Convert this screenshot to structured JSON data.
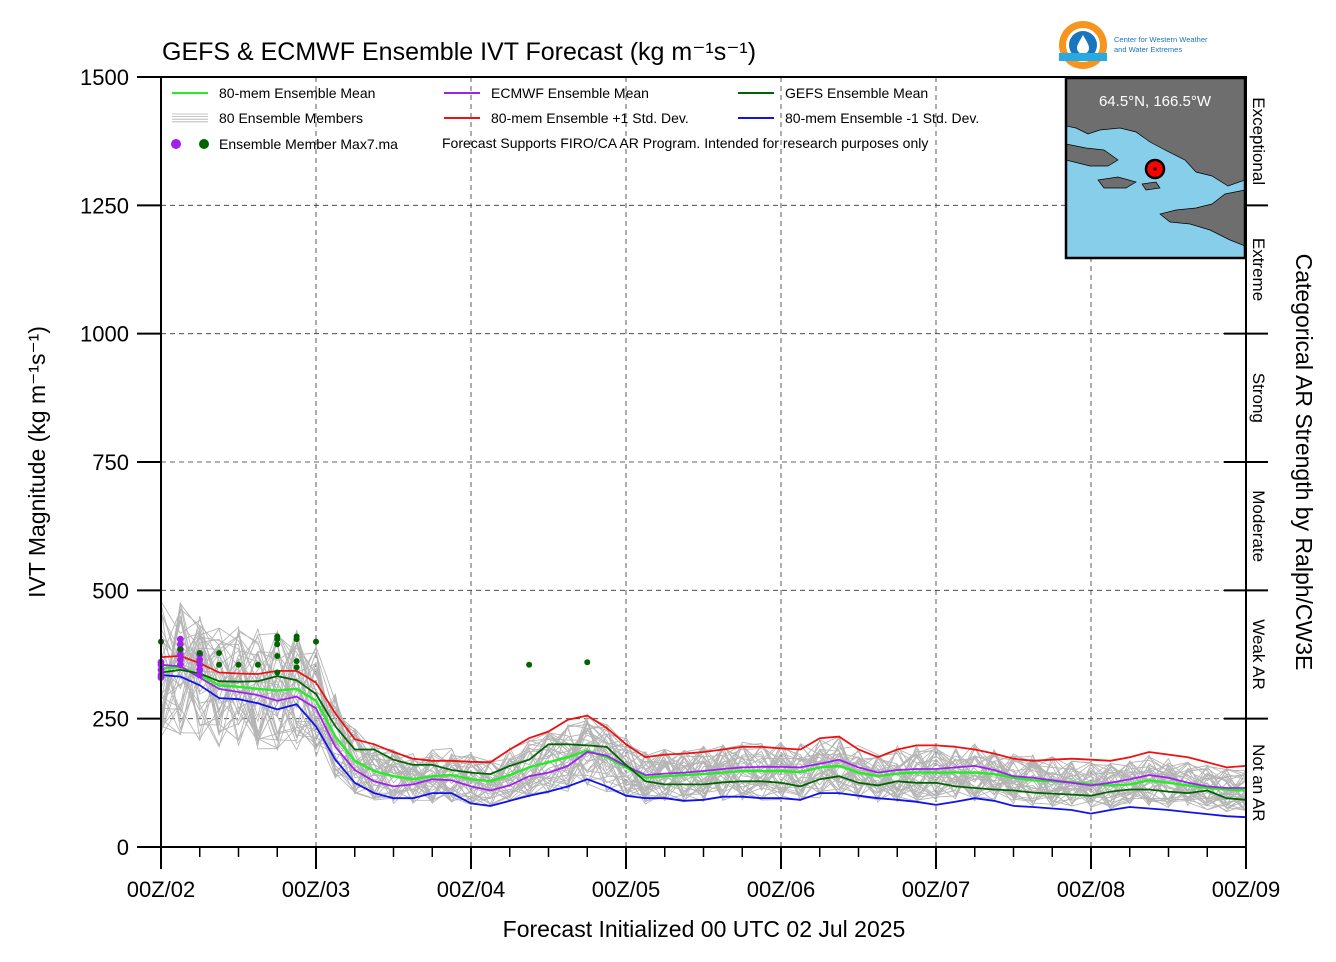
{
  "logo": {
    "org_line1": "Center for Western Weather",
    "org_line2": "and Water Extremes",
    "colors": [
      "#f7941d",
      "#1b75bc",
      "#27aae1"
    ]
  },
  "chart_data": {
    "type": "line",
    "title": "GEFS & ECMWF Ensemble IVT Forecast (kg m⁻¹s⁻¹)",
    "xlabel": "Forecast Initialized 00 UTC 02 Jul 2025",
    "ylabel": "IVT Magnitude (kg m⁻¹s⁻¹)",
    "right_axis_label": "Categorical AR Strength by Ralph/CW3E",
    "ylim": [
      0,
      1500
    ],
    "xlim": [
      0,
      168
    ],
    "x_units": "forecast hour since 00 UTC 02 Jul 2025",
    "y_ticks": [
      0,
      250,
      500,
      750,
      1000,
      1250,
      1500
    ],
    "x_ticks": [
      {
        "hour": 0,
        "label": "00Z/02"
      },
      {
        "hour": 24,
        "label": "00Z/03"
      },
      {
        "hour": 48,
        "label": "00Z/04"
      },
      {
        "hour": 72,
        "label": "00Z/05"
      },
      {
        "hour": 96,
        "label": "00Z/06"
      },
      {
        "hour": 120,
        "label": "00Z/07"
      },
      {
        "hour": 144,
        "label": "00Z/08"
      },
      {
        "hour": 168,
        "label": "00Z/09"
      }
    ],
    "grid": true,
    "categories": [
      {
        "label": "Not an AR",
        "min": 0,
        "max": 250
      },
      {
        "label": "Weak AR",
        "min": 250,
        "max": 500
      },
      {
        "label": "Moderate",
        "min": 500,
        "max": 750
      },
      {
        "label": "Strong",
        "min": 750,
        "max": 1000
      },
      {
        "label": "Extreme",
        "min": 1000,
        "max": 1250
      },
      {
        "label": "Exceptional",
        "min": 1250,
        "max": 1500
      }
    ],
    "legend": [
      {
        "label": "80-mem Ensemble Mean",
        "color": "#22ee22",
        "kind": "line"
      },
      {
        "label": "ECMWF Ensemble Mean",
        "color": "#a020f0",
        "kind": "line"
      },
      {
        "label": "GEFS Ensemble Mean",
        "color": "#006400",
        "kind": "line"
      },
      {
        "label": "80 Ensemble Members",
        "color": "#b0b0b0",
        "kind": "members"
      },
      {
        "label": "80-mem Ensemble +1 Std. Dev.",
        "color": "#ee1111",
        "kind": "line"
      },
      {
        "label": "80-mem Ensemble -1 Std. Dev.",
        "color": "#1111ee",
        "kind": "line"
      },
      {
        "label": "Ensemble Member Max7.ma",
        "color": "#a020f0",
        "color2": "#006400",
        "kind": "dots"
      }
    ],
    "note": "Forecast Supports FIRO/CA AR Program. Intended for research purposes only",
    "series": [
      {
        "name": "80-mem Ensemble +1 Std. Dev.",
        "color": "#ee1111",
        "x": [
          0,
          3,
          6,
          9,
          12,
          15,
          18,
          21,
          24,
          27,
          30,
          33,
          36,
          39,
          42,
          45,
          48,
          51,
          54,
          57,
          60,
          63,
          66,
          69,
          72,
          75,
          78,
          81,
          84,
          87,
          90,
          93,
          96,
          99,
          102,
          105,
          108,
          111,
          114,
          117,
          120,
          123,
          126,
          129,
          132,
          135,
          138,
          141,
          144,
          147,
          150,
          153,
          156,
          159,
          162,
          165,
          168
        ],
        "y": [
          370,
          372,
          358,
          340,
          338,
          337,
          343,
          343,
          320,
          260,
          210,
          200,
          185,
          172,
          168,
          168,
          166,
          165,
          190,
          212,
          225,
          248,
          256,
          232,
          200,
          175,
          180,
          182,
          185,
          190,
          195,
          195,
          192,
          190,
          212,
          215,
          190,
          175,
          190,
          198,
          198,
          195,
          190,
          182,
          172,
          168,
          170,
          172,
          170,
          168,
          175,
          185,
          180,
          175,
          165,
          155,
          158
        ]
      },
      {
        "name": "80-mem Ensemble Mean",
        "color": "#22ee22",
        "x": [
          0,
          3,
          6,
          9,
          12,
          15,
          18,
          21,
          24,
          27,
          30,
          33,
          36,
          39,
          42,
          45,
          48,
          51,
          54,
          57,
          60,
          63,
          66,
          69,
          72,
          75,
          78,
          81,
          84,
          87,
          90,
          93,
          96,
          99,
          102,
          105,
          108,
          111,
          114,
          117,
          120,
          123,
          126,
          129,
          132,
          135,
          138,
          141,
          144,
          147,
          150,
          153,
          156,
          159,
          162,
          165,
          168
        ],
        "y": [
          348,
          350,
          335,
          315,
          312,
          308,
          305,
          308,
          285,
          215,
          168,
          148,
          138,
          132,
          138,
          140,
          132,
          128,
          140,
          155,
          165,
          175,
          188,
          175,
          155,
          135,
          138,
          140,
          142,
          145,
          148,
          148,
          148,
          146,
          155,
          158,
          145,
          138,
          143,
          145,
          145,
          145,
          145,
          142,
          135,
          130,
          128,
          126,
          122,
          120,
          122,
          130,
          125,
          120,
          115,
          112,
          110
        ]
      },
      {
        "name": "ECMWF Ensemble Mean",
        "color": "#a020f0",
        "x": [
          0,
          3,
          6,
          9,
          12,
          15,
          18,
          21,
          24,
          27,
          30,
          33,
          36,
          39,
          42,
          45,
          48,
          51,
          54,
          57,
          60,
          63,
          66,
          69,
          72,
          75,
          78,
          81,
          84,
          87,
          90,
          93,
          96,
          99,
          102,
          105,
          108,
          111,
          114,
          117,
          120,
          123,
          126,
          129,
          132,
          135,
          138,
          141,
          144,
          147,
          150,
          153,
          156,
          159,
          162,
          165,
          168
        ],
        "y": [
          355,
          352,
          330,
          308,
          302,
          296,
          285,
          293,
          270,
          195,
          150,
          128,
          118,
          122,
          132,
          130,
          118,
          110,
          120,
          138,
          145,
          158,
          185,
          178,
          158,
          140,
          143,
          145,
          148,
          152,
          155,
          156,
          156,
          155,
          162,
          170,
          155,
          145,
          150,
          152,
          152,
          155,
          158,
          150,
          138,
          135,
          130,
          125,
          120,
          125,
          132,
          140,
          135,
          125,
          118,
          115,
          115
        ]
      },
      {
        "name": "GEFS Ensemble Mean",
        "color": "#006400",
        "x": [
          0,
          3,
          6,
          9,
          12,
          15,
          18,
          21,
          24,
          27,
          30,
          33,
          36,
          39,
          42,
          45,
          48,
          51,
          54,
          57,
          60,
          63,
          66,
          69,
          72,
          75,
          78,
          81,
          84,
          87,
          90,
          93,
          96,
          99,
          102,
          105,
          108,
          111,
          114,
          117,
          120,
          123,
          126,
          129,
          132,
          135,
          138,
          141,
          144,
          147,
          150,
          153,
          156,
          159,
          162,
          165,
          168
        ],
        "y": [
          340,
          345,
          338,
          323,
          322,
          323,
          333,
          325,
          298,
          235,
          190,
          190,
          170,
          160,
          160,
          150,
          145,
          142,
          158,
          170,
          200,
          200,
          198,
          195,
          160,
          128,
          122,
          122,
          122,
          126,
          128,
          128,
          125,
          118,
          132,
          138,
          125,
          120,
          128,
          125,
          125,
          118,
          115,
          112,
          110,
          106,
          104,
          102,
          100,
          108,
          112,
          112,
          108,
          105,
          110,
          95,
          92
        ]
      },
      {
        "name": "80-mem Ensemble -1 Std. Dev.",
        "color": "#1111ee",
        "x": [
          0,
          3,
          6,
          9,
          12,
          15,
          18,
          21,
          24,
          27,
          30,
          33,
          36,
          39,
          42,
          45,
          48,
          51,
          54,
          57,
          60,
          63,
          66,
          69,
          72,
          75,
          78,
          81,
          84,
          87,
          90,
          93,
          96,
          99,
          102,
          105,
          108,
          111,
          114,
          117,
          120,
          123,
          126,
          129,
          132,
          135,
          138,
          141,
          144,
          147,
          150,
          153,
          156,
          159,
          162,
          165,
          168
        ],
        "y": [
          335,
          332,
          315,
          290,
          288,
          280,
          268,
          278,
          235,
          170,
          125,
          105,
          95,
          95,
          105,
          105,
          85,
          80,
          90,
          100,
          108,
          118,
          132,
          118,
          100,
          95,
          95,
          90,
          92,
          98,
          98,
          95,
          95,
          92,
          105,
          105,
          100,
          95,
          92,
          88,
          82,
          88,
          95,
          90,
          80,
          78,
          75,
          72,
          65,
          72,
          78,
          75,
          72,
          68,
          64,
          60,
          58
        ]
      }
    ],
    "member_maxima": [
      {
        "source": "ECMWF",
        "color": "#a020f0",
        "x": [
          0,
          0,
          0,
          0,
          0,
          3,
          3,
          3,
          3,
          3,
          3,
          6,
          6,
          6,
          6,
          6
        ],
        "y": [
          360,
          345,
          335,
          330,
          355,
          405,
          395,
          385,
          375,
          365,
          355,
          375,
          365,
          355,
          345,
          335
        ]
      },
      {
        "source": "GEFS",
        "color": "#006400",
        "x": [
          0,
          3,
          6,
          9,
          9,
          12,
          15,
          18,
          18,
          18,
          18,
          18,
          21,
          21,
          21,
          21,
          24,
          57,
          66
        ],
        "y": [
          400,
          385,
          378,
          378,
          355,
          355,
          355,
          405,
          410,
          395,
          372,
          340,
          405,
          410,
          362,
          350,
          400,
          355,
          360
        ]
      }
    ]
  }
}
